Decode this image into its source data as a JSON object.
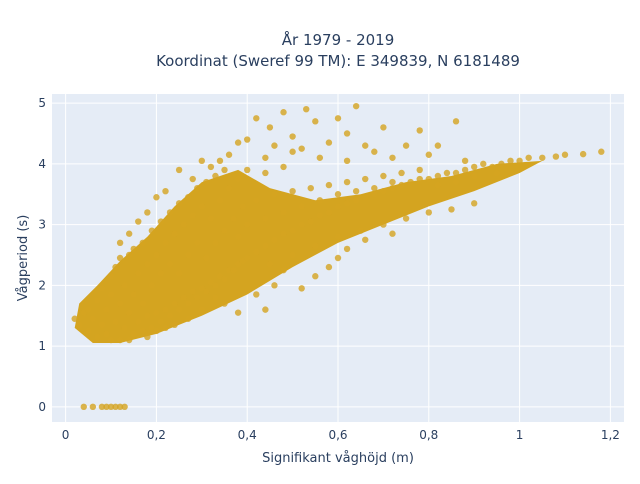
{
  "chart_data": {
    "type": "scatter",
    "title_lines": [
      "År 1979 - 2019",
      "Koordinat (Sweref 99 TM): E 349839, N 6181489"
    ],
    "xlabel": "Signifikant våghöjd (m)",
    "ylabel": "Vågperiod (s)",
    "xlim": [
      -0.03,
      1.23
    ],
    "ylim": [
      -0.25,
      5.15
    ],
    "xticks": [
      {
        "value": 0,
        "label": "0"
      },
      {
        "value": 0.2,
        "label": "0,2"
      },
      {
        "value": 0.4,
        "label": "0,4"
      },
      {
        "value": 0.6,
        "label": "0,6"
      },
      {
        "value": 0.8,
        "label": "0,8"
      },
      {
        "value": 1.0,
        "label": "1"
      },
      {
        "value": 1.2,
        "label": "1,2"
      }
    ],
    "yticks": [
      {
        "value": 0,
        "label": "0"
      },
      {
        "value": 1,
        "label": "1"
      },
      {
        "value": 2,
        "label": "2"
      },
      {
        "value": 3,
        "label": "3"
      },
      {
        "value": 4,
        "label": "4"
      },
      {
        "value": 5,
        "label": "5"
      }
    ],
    "grid": true,
    "colors": {
      "plot_bg": "#e5ecf6",
      "grid": "#ffffff",
      "marker": "#d4a420"
    },
    "series": [
      {
        "points": [
          [
            0.02,
            1.45
          ],
          [
            0.03,
            1.35
          ],
          [
            0.04,
            1.55
          ],
          [
            0.05,
            1.25
          ],
          [
            0.05,
            1.6
          ],
          [
            0.06,
            1.45
          ],
          [
            0.07,
            1.15
          ],
          [
            0.07,
            1.75
          ],
          [
            0.08,
            1.35
          ],
          [
            0.08,
            1.95
          ],
          [
            0.09,
            1.2
          ],
          [
            0.09,
            1.6
          ],
          [
            0.1,
            1.1
          ],
          [
            0.1,
            1.85
          ],
          [
            0.1,
            2.15
          ],
          [
            0.11,
            1.4
          ],
          [
            0.11,
            2.3
          ],
          [
            0.12,
            1.1
          ],
          [
            0.12,
            1.7
          ],
          [
            0.12,
            2.45
          ],
          [
            0.13,
            1.3
          ],
          [
            0.13,
            2.0
          ],
          [
            0.14,
            1.1
          ],
          [
            0.14,
            1.55
          ],
          [
            0.14,
            2.5
          ],
          [
            0.15,
            1.2
          ],
          [
            0.15,
            1.85
          ],
          [
            0.15,
            2.6
          ],
          [
            0.16,
            1.4
          ],
          [
            0.16,
            2.2
          ],
          [
            0.17,
            1.25
          ],
          [
            0.17,
            1.7
          ],
          [
            0.17,
            2.7
          ],
          [
            0.18,
            1.5
          ],
          [
            0.18,
            2.35
          ],
          [
            0.19,
            1.3
          ],
          [
            0.19,
            2.0
          ],
          [
            0.19,
            2.9
          ],
          [
            0.2,
            1.55
          ],
          [
            0.2,
            2.5
          ],
          [
            0.21,
            1.4
          ],
          [
            0.21,
            2.2
          ],
          [
            0.21,
            3.05
          ],
          [
            0.22,
            1.6
          ],
          [
            0.22,
            2.7
          ],
          [
            0.23,
            1.5
          ],
          [
            0.23,
            2.35
          ],
          [
            0.23,
            3.2
          ],
          [
            0.24,
            1.7
          ],
          [
            0.24,
            2.85
          ],
          [
            0.25,
            1.6
          ],
          [
            0.25,
            2.2
          ],
          [
            0.25,
            3.35
          ],
          [
            0.26,
            1.8
          ],
          [
            0.26,
            3.0
          ],
          [
            0.27,
            1.7
          ],
          [
            0.27,
            2.5
          ],
          [
            0.27,
            3.45
          ],
          [
            0.28,
            1.9
          ],
          [
            0.28,
            3.15
          ],
          [
            0.29,
            1.8
          ],
          [
            0.29,
            2.7
          ],
          [
            0.29,
            3.6
          ],
          [
            0.3,
            1.95
          ],
          [
            0.3,
            3.3
          ],
          [
            0.31,
            1.9
          ],
          [
            0.31,
            2.45
          ],
          [
            0.31,
            3.7
          ],
          [
            0.32,
            2.05
          ],
          [
            0.32,
            3.1
          ],
          [
            0.33,
            2.0
          ],
          [
            0.33,
            2.7
          ],
          [
            0.33,
            3.8
          ],
          [
            0.34,
            2.15
          ],
          [
            0.34,
            3.4
          ],
          [
            0.35,
            2.1
          ],
          [
            0.35,
            2.9
          ],
          [
            0.35,
            3.9
          ],
          [
            0.36,
            2.25
          ],
          [
            0.36,
            3.6
          ],
          [
            0.37,
            2.25
          ],
          [
            0.37,
            3.1
          ],
          [
            0.38,
            2.35
          ],
          [
            0.38,
            2.8
          ],
          [
            0.38,
            3.75
          ],
          [
            0.39,
            2.4
          ],
          [
            0.39,
            3.3
          ],
          [
            0.4,
            2.45
          ],
          [
            0.4,
            3.0
          ],
          [
            0.4,
            3.9
          ],
          [
            0.42,
            2.55
          ],
          [
            0.42,
            3.4
          ],
          [
            0.44,
            2.65
          ],
          [
            0.44,
            3.1
          ],
          [
            0.44,
            3.85
          ],
          [
            0.46,
            2.75
          ],
          [
            0.46,
            3.5
          ],
          [
            0.48,
            2.85
          ],
          [
            0.48,
            3.2
          ],
          [
            0.48,
            3.95
          ],
          [
            0.5,
            2.9
          ],
          [
            0.5,
            3.55
          ],
          [
            0.52,
            3.0
          ],
          [
            0.52,
            3.3
          ],
          [
            0.54,
            3.05
          ],
          [
            0.54,
            3.6
          ],
          [
            0.56,
            3.15
          ],
          [
            0.56,
            3.4
          ],
          [
            0.58,
            3.2
          ],
          [
            0.58,
            3.65
          ],
          [
            0.6,
            3.3
          ],
          [
            0.6,
            3.5
          ],
          [
            0.62,
            3.35
          ],
          [
            0.62,
            3.7
          ],
          [
            0.64,
            3.4
          ],
          [
            0.64,
            3.55
          ],
          [
            0.66,
            3.45
          ],
          [
            0.66,
            3.75
          ],
          [
            0.68,
            3.5
          ],
          [
            0.68,
            3.6
          ],
          [
            0.7,
            3.55
          ],
          [
            0.7,
            3.8
          ],
          [
            0.72,
            3.6
          ],
          [
            0.72,
            3.7
          ],
          [
            0.74,
            3.65
          ],
          [
            0.74,
            3.85
          ],
          [
            0.76,
            3.7
          ],
          [
            0.78,
            3.75
          ],
          [
            0.78,
            3.9
          ],
          [
            0.8,
            3.75
          ],
          [
            0.82,
            3.8
          ],
          [
            0.82,
            3.65
          ],
          [
            0.84,
            3.85
          ],
          [
            0.86,
            3.85
          ],
          [
            0.86,
            3.7
          ],
          [
            0.88,
            3.9
          ],
          [
            0.9,
            3.95
          ],
          [
            0.9,
            3.8
          ],
          [
            0.92,
            4.0
          ],
          [
            0.94,
            3.95
          ],
          [
            0.96,
            4.0
          ],
          [
            0.98,
            4.05
          ],
          [
            1.0,
            4.05
          ],
          [
            1.02,
            4.1
          ],
          [
            1.05,
            4.1
          ],
          [
            1.08,
            4.12
          ],
          [
            1.1,
            4.15
          ],
          [
            1.14,
            4.16
          ],
          [
            1.18,
            4.2
          ],
          [
            0.95,
            3.85
          ],
          [
            0.4,
            4.4
          ],
          [
            0.42,
            4.75
          ],
          [
            0.45,
            4.6
          ],
          [
            0.48,
            4.85
          ],
          [
            0.5,
            4.45
          ],
          [
            0.53,
            4.9
          ],
          [
            0.55,
            4.7
          ],
          [
            0.6,
            4.75
          ],
          [
            0.62,
            4.5
          ],
          [
            0.64,
            4.95
          ],
          [
            0.7,
            4.6
          ],
          [
            0.78,
            4.55
          ],
          [
            0.82,
            4.3
          ],
          [
            0.86,
            4.7
          ],
          [
            0.75,
            4.3
          ],
          [
            0.68,
            4.2
          ],
          [
            0.58,
            4.35
          ],
          [
            0.52,
            4.25
          ],
          [
            0.46,
            4.3
          ],
          [
            0.38,
            4.35
          ],
          [
            0.36,
            4.15
          ],
          [
            0.34,
            4.05
          ],
          [
            0.44,
            4.1
          ],
          [
            0.5,
            4.2
          ],
          [
            0.56,
            4.1
          ],
          [
            0.62,
            4.05
          ],
          [
            0.66,
            4.3
          ],
          [
            0.72,
            4.1
          ],
          [
            0.8,
            4.15
          ],
          [
            0.88,
            4.05
          ],
          [
            0.25,
            3.9
          ],
          [
            0.3,
            4.05
          ],
          [
            0.28,
            3.75
          ],
          [
            0.32,
            3.95
          ],
          [
            0.22,
            3.55
          ],
          [
            0.2,
            3.45
          ],
          [
            0.18,
            3.2
          ],
          [
            0.16,
            3.05
          ],
          [
            0.14,
            2.85
          ],
          [
            0.12,
            2.7
          ],
          [
            0.45,
            2.35
          ],
          [
            0.5,
            2.5
          ],
          [
            0.55,
            2.65
          ],
          [
            0.6,
            2.8
          ],
          [
            0.65,
            2.9
          ],
          [
            0.7,
            3.0
          ],
          [
            0.75,
            3.1
          ],
          [
            0.8,
            3.2
          ],
          [
            0.85,
            3.25
          ],
          [
            0.9,
            3.35
          ],
          [
            0.52,
            1.95
          ],
          [
            0.55,
            2.15
          ],
          [
            0.58,
            2.3
          ],
          [
            0.6,
            2.45
          ],
          [
            0.46,
            2.0
          ],
          [
            0.42,
            1.85
          ],
          [
            0.48,
            2.25
          ],
          [
            0.62,
            2.6
          ],
          [
            0.66,
            2.75
          ],
          [
            0.72,
            2.85
          ],
          [
            0.44,
            1.6
          ],
          [
            0.38,
            1.55
          ],
          [
            0.35,
            1.7
          ],
          [
            0.33,
            1.8
          ],
          [
            0.3,
            1.6
          ],
          [
            0.27,
            1.45
          ],
          [
            0.24,
            1.35
          ],
          [
            0.22,
            1.3
          ],
          [
            0.2,
            1.25
          ],
          [
            0.18,
            1.15
          ],
          [
            0.04,
            0.0
          ],
          [
            0.06,
            0.0
          ],
          [
            0.08,
            0.0
          ],
          [
            0.09,
            0.0
          ],
          [
            0.1,
            0.0
          ],
          [
            0.11,
            0.0
          ],
          [
            0.12,
            0.0
          ],
          [
            0.13,
            0.0
          ]
        ]
      }
    ]
  }
}
